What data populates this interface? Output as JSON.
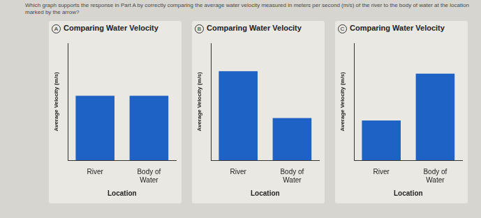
{
  "question": "Which graph supports the response in Part A by correctly comparing the average water velocity measured in meters per second (m/s) of the river to the body of water at the location marked by the arrow?",
  "chart_data": [
    {
      "type": "bar",
      "label": "A",
      "title": "Comparing Water Velocity",
      "y_label": "Average Velocity (m/s)",
      "x_label": "Location",
      "categories": [
        "River",
        "Body of Water"
      ],
      "values": [
        5.5,
        5.5
      ],
      "color": "#1d62c4",
      "ylim": [
        0,
        10
      ],
      "grid": false,
      "tick_labels": "x"
    },
    {
      "type": "bar",
      "label": "B",
      "title": "Comparing Water Velocity",
      "y_label": "Average Velocity (m/s)",
      "x_label": "Location",
      "categories": [
        "River",
        "Body of Water"
      ],
      "values": [
        7.6,
        3.6
      ],
      "color": "#1d62c4",
      "ylim": [
        0,
        10
      ],
      "grid": false,
      "tick_labels": "x"
    },
    {
      "type": "bar",
      "label": "C",
      "title": "Comparing Water Velocity",
      "y_label": "Average Velocity (m/s)",
      "x_label": "Location",
      "categories": [
        "River",
        "Body of Water"
      ],
      "values": [
        3.4,
        7.4
      ],
      "color": "#1d62c4",
      "ylim": [
        0,
        10
      ],
      "grid": false,
      "tick_labels": "x"
    }
  ]
}
